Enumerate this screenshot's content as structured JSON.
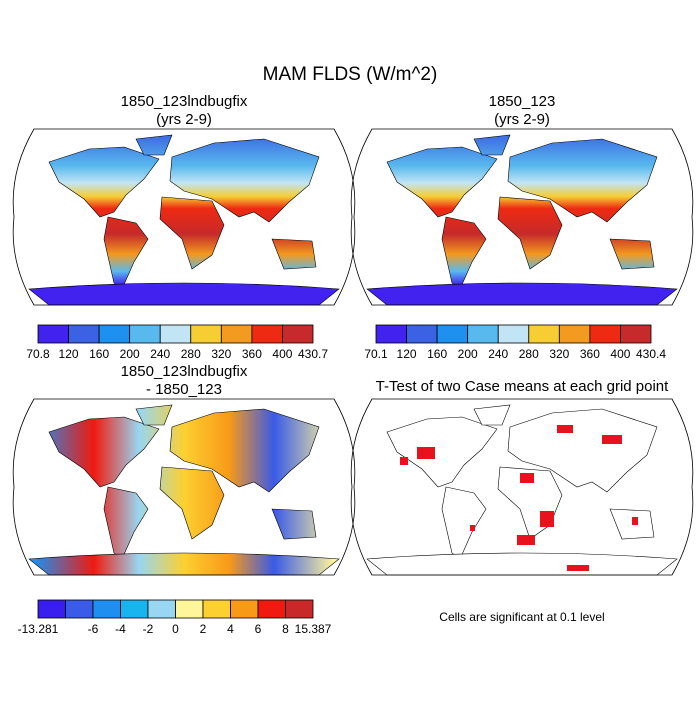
{
  "title": "MAM FLDS (W/m^2)",
  "panels": [
    {
      "title": [
        "1850_123lndbugfix",
        "(yrs 2-9)"
      ],
      "colorbar": {
        "labels": [
          70.8,
          120,
          160,
          200,
          240,
          280,
          320,
          360,
          400,
          430.7
        ],
        "colors": [
          "#4222ee",
          "#3a62e2",
          "#1e90f0",
          "#58b9ee",
          "#c2e5f5",
          "#f6cd32",
          "#f39a20",
          "#ee2a12",
          "#c62a2a"
        ]
      }
    },
    {
      "title": [
        "1850_123",
        "(yrs 2-9)"
      ],
      "colorbar": {
        "labels": [
          70.1,
          120,
          160,
          200,
          240,
          280,
          320,
          360,
          400,
          430.4
        ],
        "colors": [
          "#4222ee",
          "#3a62e2",
          "#1e90f0",
          "#58b9ee",
          "#c2e5f5",
          "#f6cd32",
          "#f39a20",
          "#ee2a12",
          "#c62a2a"
        ]
      }
    },
    {
      "title": [
        "1850_123lndbugfix",
        "- 1850_123"
      ],
      "colorbar": {
        "labels": [
          -13.281,
          null,
          -6,
          -4,
          -2,
          0,
          2,
          4,
          6,
          8,
          15.387
        ],
        "colors": [
          "#3a1ef0",
          "#3a5ae8",
          "#1e8ff0",
          "#18b4f0",
          "#98d6f2",
          "#fff59a",
          "#fcd030",
          "#f89a18",
          "#f01a10",
          "#c82828"
        ]
      }
    },
    {
      "title": [
        "T-Test of two Case means at each grid point"
      ]
    }
  ],
  "note": "Cells are significant at 0.1 level"
}
